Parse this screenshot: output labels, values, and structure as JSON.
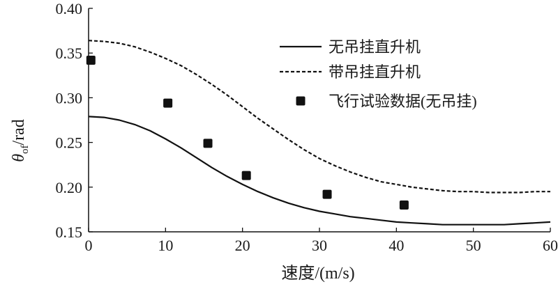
{
  "chart_data": {
    "type": "line",
    "xlabel": "速度/(m/s)",
    "ylabel_symbol": "θ",
    "ylabel_subscript": "of",
    "ylabel_unit": "/rad",
    "xlim": [
      0,
      60
    ],
    "ylim": [
      0.15,
      0.4
    ],
    "xticks": [
      0,
      10,
      20,
      30,
      40,
      50,
      60
    ],
    "yticks": [
      0.15,
      0.2,
      0.25,
      0.3,
      0.35,
      0.4
    ],
    "xtick_labels": [
      "0",
      "10",
      "20",
      "30",
      "40",
      "50",
      "60"
    ],
    "ytick_labels": [
      "0.15",
      "0.20",
      "0.25",
      "0.30",
      "0.35",
      "0.40"
    ],
    "grid": false,
    "legend_position": "top-right",
    "series": [
      {
        "name": "无吊挂直升机",
        "style": "solid",
        "color": "#111111",
        "x": [
          0,
          2,
          4,
          6,
          8,
          10,
          12,
          14,
          16,
          18,
          20,
          22,
          24,
          26,
          28,
          30,
          32,
          34,
          36,
          38,
          40,
          42,
          44,
          46,
          48,
          50,
          52,
          54,
          56,
          58,
          60
        ],
        "y": [
          0.279,
          0.278,
          0.275,
          0.27,
          0.263,
          0.254,
          0.244,
          0.233,
          0.222,
          0.212,
          0.203,
          0.195,
          0.188,
          0.182,
          0.177,
          0.173,
          0.17,
          0.167,
          0.165,
          0.163,
          0.161,
          0.16,
          0.159,
          0.158,
          0.158,
          0.158,
          0.158,
          0.158,
          0.159,
          0.16,
          0.161
        ]
      },
      {
        "name": "带吊挂直升机",
        "style": "dashed",
        "color": "#111111",
        "x": [
          0,
          2,
          4,
          6,
          8,
          10,
          12,
          14,
          16,
          18,
          20,
          22,
          24,
          26,
          28,
          30,
          32,
          34,
          36,
          38,
          40,
          42,
          44,
          46,
          48,
          50,
          52,
          54,
          56,
          58,
          60
        ],
        "y": [
          0.364,
          0.363,
          0.361,
          0.357,
          0.351,
          0.344,
          0.336,
          0.326,
          0.315,
          0.303,
          0.29,
          0.277,
          0.265,
          0.253,
          0.242,
          0.232,
          0.224,
          0.217,
          0.211,
          0.206,
          0.203,
          0.2,
          0.198,
          0.196,
          0.195,
          0.195,
          0.194,
          0.194,
          0.194,
          0.195,
          0.195
        ]
      },
      {
        "name": "飞行试验数据(无吊挂)",
        "style": "marker",
        "marker": "square",
        "color": "#111111",
        "x": [
          0.3,
          10.3,
          15.5,
          20.5,
          31,
          41
        ],
        "y": [
          0.342,
          0.294,
          0.249,
          0.213,
          0.192,
          0.18
        ]
      }
    ]
  }
}
